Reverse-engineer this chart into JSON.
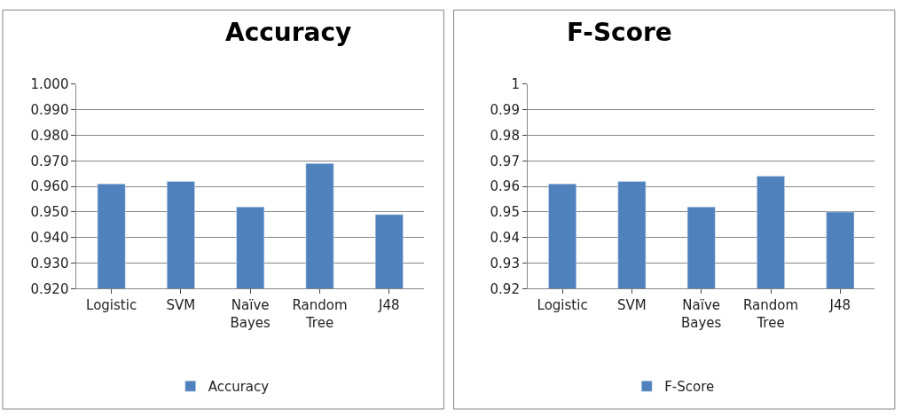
{
  "chart_data": [
    {
      "type": "bar",
      "title": "Accuracy",
      "categories": [
        "Logistic",
        "SVM",
        "Naïve Bayes",
        "Random Tree",
        "J48"
      ],
      "series": [
        {
          "name": "Accuracy",
          "color": "#4f81bd",
          "values": [
            0.961,
            0.962,
            0.952,
            0.969,
            0.949
          ]
        }
      ],
      "ylim": [
        0.92,
        1.0
      ],
      "yticks": [
        {
          "value": 0.92,
          "label": "0.920"
        },
        {
          "value": 0.93,
          "label": "0.930"
        },
        {
          "value": 0.94,
          "label": "0.940"
        },
        {
          "value": 0.95,
          "label": "0.950"
        },
        {
          "value": 0.96,
          "label": "0.960"
        },
        {
          "value": 0.97,
          "label": "0.970"
        },
        {
          "value": 0.98,
          "label": "0.980"
        },
        {
          "value": 0.99,
          "label": "0.990"
        },
        {
          "value": 1.0,
          "label": "1.000"
        }
      ],
      "grid": "y",
      "legend": "bottom"
    },
    {
      "type": "bar",
      "title": "F-Score",
      "categories": [
        "Logistic",
        "SVM",
        "Naïve Bayes",
        "Random Tree",
        "J48"
      ],
      "series": [
        {
          "name": "F-Score",
          "color": "#4f81bd",
          "values": [
            0.961,
            0.962,
            0.952,
            0.964,
            0.95
          ]
        }
      ],
      "ylim": [
        0.92,
        1
      ],
      "yticks": [
        0.92,
        0.93,
        0.94,
        0.95,
        0.96,
        0.97,
        0.98,
        0.99,
        1
      ],
      "grid": "y",
      "legend": "bottom"
    }
  ]
}
